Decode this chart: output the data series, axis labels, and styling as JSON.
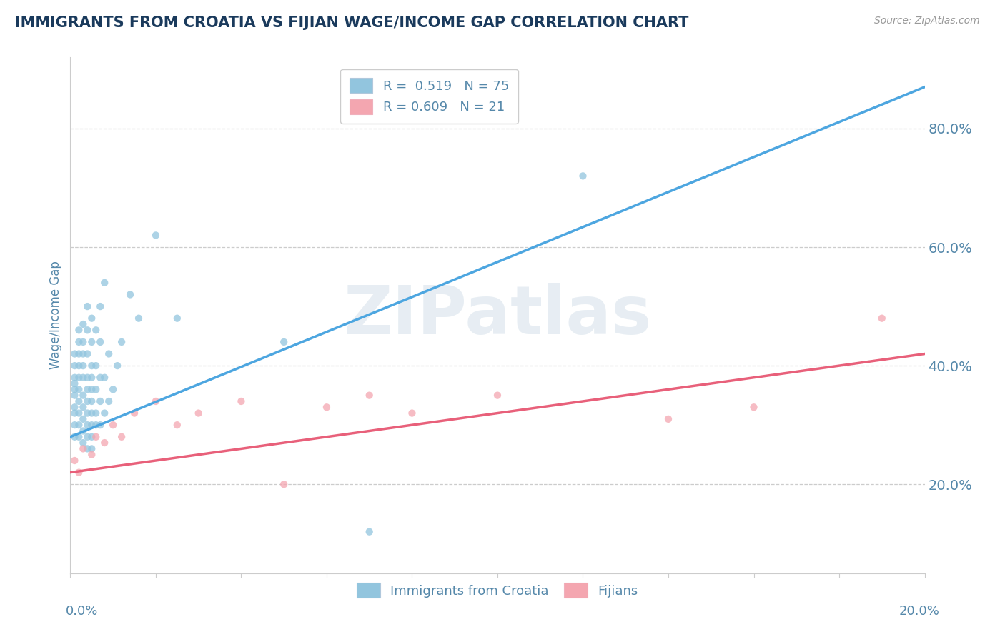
{
  "title": "IMMIGRANTS FROM CROATIA VS FIJIAN WAGE/INCOME GAP CORRELATION CHART",
  "source_text": "Source: ZipAtlas.com",
  "ylabel": "Wage/Income Gap",
  "right_ytick_values": [
    0.2,
    0.4,
    0.6,
    0.8
  ],
  "legend_entries": [
    {
      "label": "R =  0.519   N = 75",
      "color": "#92c5de"
    },
    {
      "label": "R = 0.609   N = 21",
      "color": "#f4a6b0"
    }
  ],
  "legend_bottom": [
    {
      "label": "Immigrants from Croatia",
      "color": "#92c5de"
    },
    {
      "label": "Fijians",
      "color": "#f4a6b0"
    }
  ],
  "xmin": 0.0,
  "xmax": 0.2,
  "ymin": 0.05,
  "ymax": 0.92,
  "title_color": "#1a3a5c",
  "label_color": "#5588aa",
  "watermark": "ZIPatlas",
  "blue_scatter_color": "#92c5de",
  "pink_scatter_color": "#f4a6b0",
  "blue_line_color": "#4da6e0",
  "pink_line_color": "#e8607a",
  "grid_color": "#cccccc",
  "background_color": "#ffffff",
  "blue_R": 0.519,
  "blue_N": 75,
  "pink_R": 0.609,
  "pink_N": 21,
  "blue_line_x0": 0.0,
  "blue_line_y0": 0.28,
  "blue_line_x1": 0.2,
  "blue_line_y1": 0.87,
  "pink_line_x0": 0.0,
  "pink_line_y0": 0.22,
  "pink_line_x1": 0.2,
  "pink_line_y1": 0.42,
  "blue_scatter_x": [
    0.001,
    0.001,
    0.001,
    0.001,
    0.001,
    0.001,
    0.001,
    0.001,
    0.001,
    0.001,
    0.002,
    0.002,
    0.002,
    0.002,
    0.002,
    0.002,
    0.002,
    0.002,
    0.002,
    0.002,
    0.003,
    0.003,
    0.003,
    0.003,
    0.003,
    0.003,
    0.003,
    0.003,
    0.003,
    0.003,
    0.004,
    0.004,
    0.004,
    0.004,
    0.004,
    0.004,
    0.004,
    0.004,
    0.004,
    0.004,
    0.005,
    0.005,
    0.005,
    0.005,
    0.005,
    0.005,
    0.005,
    0.005,
    0.005,
    0.005,
    0.006,
    0.006,
    0.006,
    0.006,
    0.006,
    0.007,
    0.007,
    0.007,
    0.007,
    0.007,
    0.008,
    0.008,
    0.008,
    0.009,
    0.009,
    0.01,
    0.011,
    0.012,
    0.014,
    0.016,
    0.02,
    0.025,
    0.05,
    0.12,
    0.07
  ],
  "blue_scatter_y": [
    0.28,
    0.3,
    0.32,
    0.33,
    0.35,
    0.36,
    0.37,
    0.38,
    0.4,
    0.42,
    0.28,
    0.3,
    0.32,
    0.34,
    0.36,
    0.38,
    0.4,
    0.42,
    0.44,
    0.46,
    0.27,
    0.29,
    0.31,
    0.33,
    0.35,
    0.38,
    0.4,
    0.42,
    0.44,
    0.47,
    0.26,
    0.28,
    0.3,
    0.32,
    0.34,
    0.36,
    0.38,
    0.42,
    0.46,
    0.5,
    0.26,
    0.28,
    0.3,
    0.32,
    0.34,
    0.36,
    0.38,
    0.4,
    0.44,
    0.48,
    0.3,
    0.32,
    0.36,
    0.4,
    0.46,
    0.3,
    0.34,
    0.38,
    0.44,
    0.5,
    0.32,
    0.38,
    0.54,
    0.34,
    0.42,
    0.36,
    0.4,
    0.44,
    0.52,
    0.48,
    0.62,
    0.48,
    0.44,
    0.72,
    0.12
  ],
  "pink_scatter_x": [
    0.001,
    0.002,
    0.003,
    0.005,
    0.006,
    0.008,
    0.01,
    0.012,
    0.015,
    0.02,
    0.025,
    0.03,
    0.04,
    0.05,
    0.06,
    0.07,
    0.08,
    0.1,
    0.14,
    0.16,
    0.19
  ],
  "pink_scatter_y": [
    0.24,
    0.22,
    0.26,
    0.25,
    0.28,
    0.27,
    0.3,
    0.28,
    0.32,
    0.34,
    0.3,
    0.32,
    0.34,
    0.2,
    0.33,
    0.35,
    0.32,
    0.35,
    0.31,
    0.33,
    0.48
  ]
}
